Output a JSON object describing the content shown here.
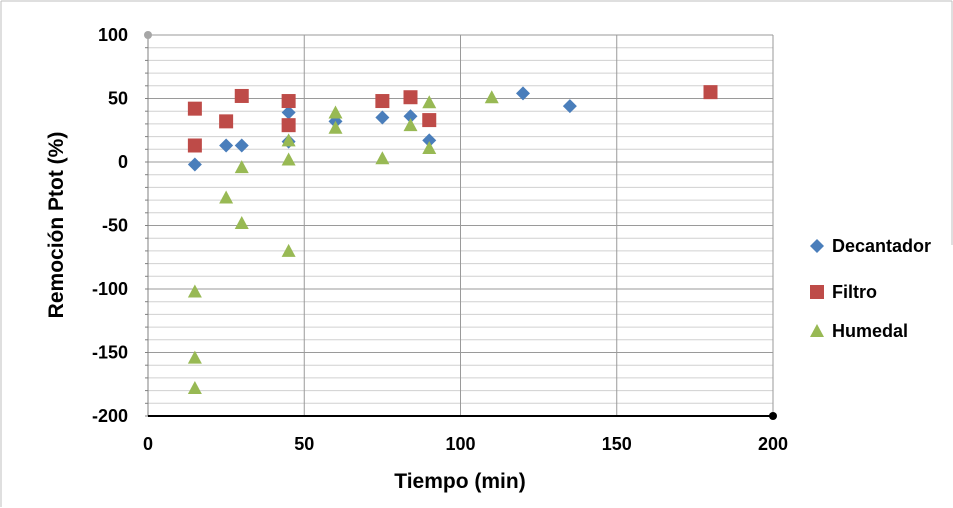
{
  "chart_data": {
    "type": "scatter",
    "title": "",
    "xlabel": "Tiempo (min)",
    "ylabel": "Remoción Ptot (%)",
    "xlim": [
      0,
      200
    ],
    "ylim": [
      -200,
      100
    ],
    "xticks": [
      0,
      50,
      100,
      150,
      200
    ],
    "yticks": [
      100,
      50,
      0,
      -50,
      -100,
      -150,
      -200
    ],
    "grid": "major vertical and horizontal",
    "legend_position": "right",
    "series": [
      {
        "name": "Decantador",
        "marker": "diamond",
        "color": "#4a7ebb",
        "points": [
          [
            15,
            -2
          ],
          [
            25,
            13
          ],
          [
            30,
            13
          ],
          [
            45,
            39
          ],
          [
            45,
            16
          ],
          [
            60,
            32
          ],
          [
            75,
            35
          ],
          [
            84,
            36
          ],
          [
            90,
            17
          ],
          [
            120,
            54
          ],
          [
            135,
            44
          ]
        ]
      },
      {
        "name": "Filtro",
        "marker": "square",
        "color": "#be4b48",
        "points": [
          [
            15,
            42
          ],
          [
            15,
            13
          ],
          [
            25,
            32
          ],
          [
            30,
            52
          ],
          [
            45,
            48
          ],
          [
            45,
            29
          ],
          [
            75,
            48
          ],
          [
            84,
            51
          ],
          [
            90,
            33
          ],
          [
            180,
            55
          ]
        ]
      },
      {
        "name": "Humedal",
        "marker": "triangle",
        "color": "#98b954",
        "points": [
          [
            15,
            -102
          ],
          [
            15,
            -154
          ],
          [
            15,
            -178
          ],
          [
            25,
            -28
          ],
          [
            30,
            -4
          ],
          [
            30,
            -48
          ],
          [
            45,
            2
          ],
          [
            45,
            17
          ],
          [
            45,
            -70
          ],
          [
            60,
            39
          ],
          [
            60,
            27
          ],
          [
            75,
            3
          ],
          [
            84,
            29
          ],
          [
            90,
            47
          ],
          [
            90,
            11
          ],
          [
            110,
            51
          ]
        ]
      }
    ]
  }
}
